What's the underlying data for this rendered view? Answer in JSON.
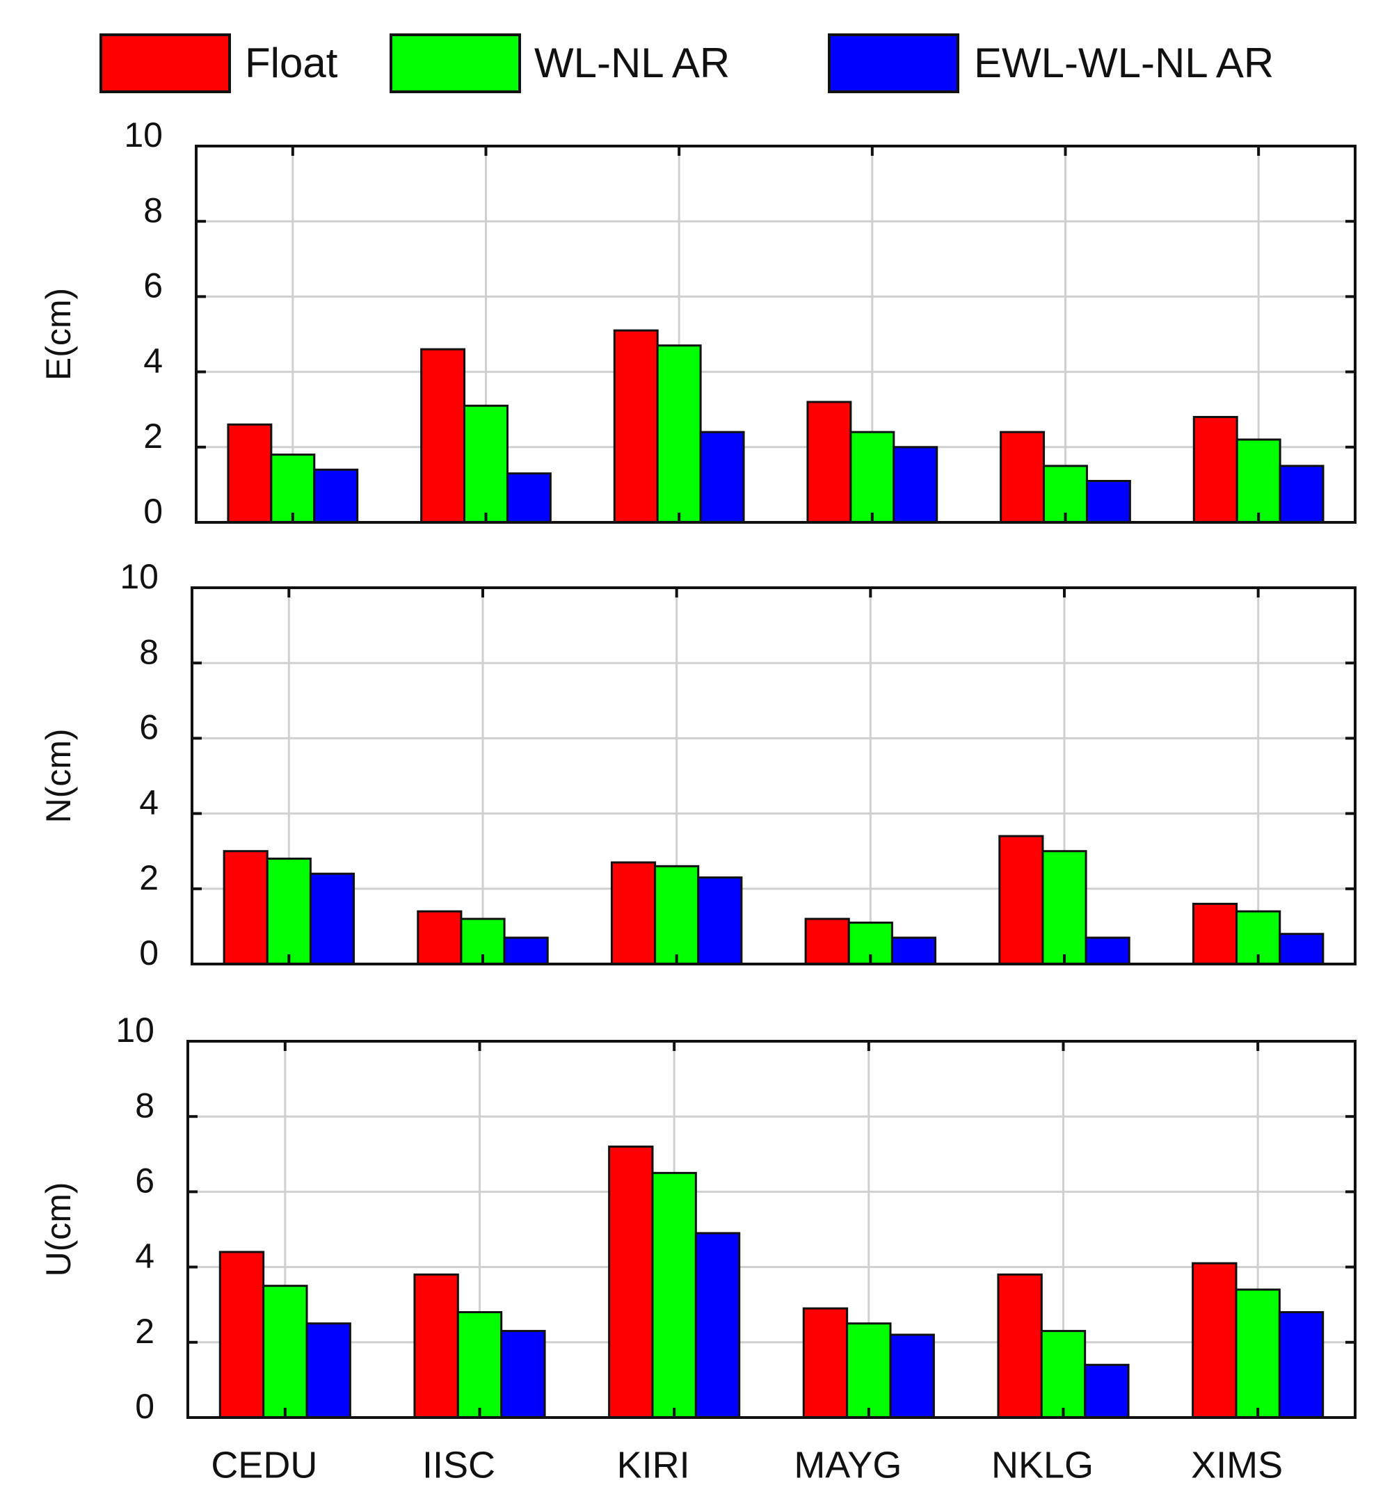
{
  "chart_data": {
    "type": "bar",
    "categories": [
      "CEDU",
      "IISC",
      "KIRI",
      "MAYG",
      "NKLG",
      "XIMS"
    ],
    "legend": [
      "Float",
      "WL-NL AR",
      "EWL-WL-NL AR"
    ],
    "series_colors": [
      "#ff0000",
      "#00ff00",
      "#0000ff"
    ],
    "ylim": [
      0,
      10
    ],
    "yticks": [
      0,
      2,
      4,
      6,
      8,
      10
    ],
    "grid": true,
    "legend_position": "top",
    "panels": [
      {
        "ylabel": "E(cm)",
        "series": [
          {
            "name": "Float",
            "values": [
              2.6,
              4.6,
              5.1,
              3.2,
              2.4,
              2.8
            ]
          },
          {
            "name": "WL-NL AR",
            "values": [
              1.8,
              3.1,
              4.7,
              2.4,
              1.5,
              2.2
            ]
          },
          {
            "name": "EWL-WL-NL AR",
            "values": [
              1.4,
              1.3,
              2.4,
              2.0,
              1.1,
              1.5
            ]
          }
        ]
      },
      {
        "ylabel": "N(cm)",
        "series": [
          {
            "name": "Float",
            "values": [
              3.0,
              1.4,
              2.7,
              1.2,
              3.4,
              1.6
            ]
          },
          {
            "name": "WL-NL AR",
            "values": [
              2.8,
              1.2,
              2.6,
              1.1,
              3.0,
              1.4
            ]
          },
          {
            "name": "EWL-WL-NL AR",
            "values": [
              2.4,
              0.7,
              2.3,
              0.7,
              0.7,
              0.8
            ]
          }
        ]
      },
      {
        "ylabel": "U(cm)",
        "series": [
          {
            "name": "Float",
            "values": [
              4.4,
              3.8,
              7.2,
              2.9,
              3.8,
              4.1
            ]
          },
          {
            "name": "WL-NL AR",
            "values": [
              3.5,
              2.8,
              6.5,
              2.5,
              2.3,
              3.4
            ]
          },
          {
            "name": "EWL-WL-NL AR",
            "values": [
              2.5,
              2.3,
              4.9,
              2.2,
              1.4,
              2.8
            ]
          }
        ]
      }
    ]
  }
}
